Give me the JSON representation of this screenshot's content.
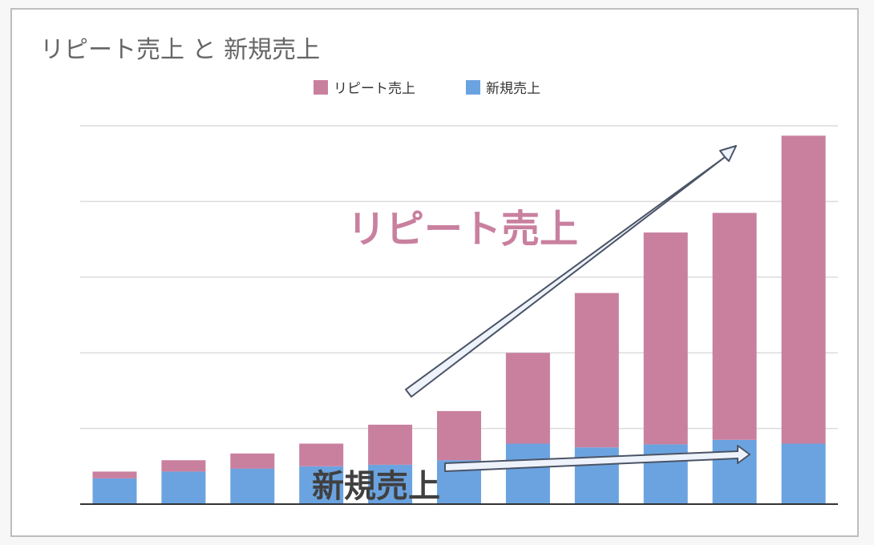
{
  "chart_data": {
    "type": "bar",
    "stacked": true,
    "title": "リピート売上 と 新規売上",
    "categories": [
      "",
      "",
      "",
      "",
      "",
      "",
      "",
      "",
      "",
      "",
      ""
    ],
    "series": [
      {
        "name": "新規売上",
        "color": "#6ba3e0",
        "values": [
          34,
          43,
          47,
          50,
          52,
          58,
          80,
          75,
          79,
          85,
          80
        ]
      },
      {
        "name": "リピート売上",
        "color": "#c9809f",
        "values": [
          9,
          15,
          20,
          30,
          53,
          65,
          120,
          204,
          280,
          300,
          407
        ]
      }
    ],
    "ylim": [
      0,
      500
    ],
    "grid": true,
    "legend_position": "top",
    "annotations": [
      {
        "text": "リピート売上",
        "color": "#c9809f"
      },
      {
        "text": "新規売上",
        "color": "#404040"
      }
    ]
  }
}
